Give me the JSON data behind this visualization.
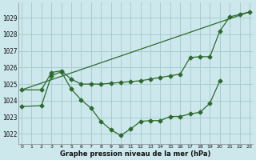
{
  "bg_color": "#cce8ed",
  "grid_color": "#aacccc",
  "line_color": "#2d6a2d",
  "ylabel_values": [
    1022,
    1023,
    1024,
    1025,
    1026,
    1027,
    1028,
    1029
  ],
  "xlim": [
    -0.3,
    23.3
  ],
  "ylim": [
    1021.4,
    1029.9
  ],
  "xlabel": "Graphe pression niveau de la mer (hPa)",
  "line1_x": [
    0,
    23
  ],
  "line1_y": [
    1024.65,
    1029.35
  ],
  "line2_x": [
    0,
    2,
    3,
    4,
    5,
    6,
    7,
    8,
    9,
    10,
    11,
    12,
    13,
    14,
    15,
    16,
    17,
    18,
    19,
    20,
    21,
    22,
    23
  ],
  "line2_y": [
    1024.65,
    1024.65,
    1025.7,
    1025.8,
    1025.3,
    1025.0,
    1025.0,
    1025.0,
    1025.05,
    1025.1,
    1025.15,
    1025.2,
    1025.3,
    1025.4,
    1025.5,
    1025.6,
    1026.6,
    1026.65,
    1026.65,
    1028.2,
    1029.05,
    1029.2,
    1029.35
  ],
  "line3_x": [
    0,
    2,
    3,
    4,
    5,
    6,
    7,
    8,
    9,
    10,
    11,
    12,
    13,
    14,
    15,
    16,
    17,
    18,
    19,
    20
  ],
  "line3_y": [
    1023.65,
    1023.7,
    1025.5,
    1025.75,
    1024.7,
    1024.05,
    1023.55,
    1022.75,
    1022.25,
    1021.9,
    1022.3,
    1022.75,
    1022.8,
    1022.8,
    1023.05,
    1023.05,
    1023.2,
    1023.3,
    1023.85,
    1025.2
  ],
  "xtick_labels": [
    "0",
    "1",
    "2",
    "3",
    "4",
    "5",
    "6",
    "7",
    "8",
    "9",
    "10",
    "11",
    "12",
    "13",
    "14",
    "15",
    "16",
    "17",
    "18",
    "19",
    "20",
    "21",
    "22",
    "23"
  ]
}
